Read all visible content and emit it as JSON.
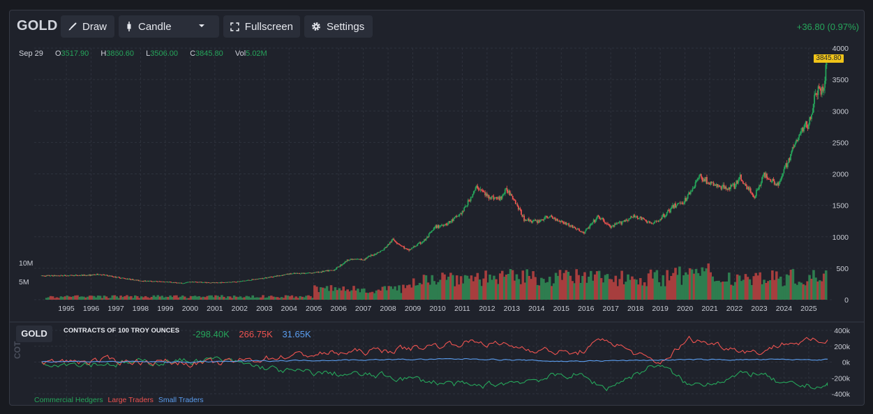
{
  "toolbar": {
    "symbol": "GOLD",
    "draw_label": "Draw",
    "chart_type_label": "Candle",
    "fullscreen_label": "Fullscreen",
    "settings_label": "Settings",
    "change_text": "+36.80 (0.97%)"
  },
  "ohlc": {
    "date": "Sep 29",
    "o_key": "O",
    "o": "3517.90",
    "h_key": "H",
    "h": "3860.60",
    "l_key": "L",
    "l": "3506.00",
    "c_key": "C",
    "c": "3845.80",
    "vol_key": "Vol",
    "vol": "5.02M"
  },
  "last_price_tag": "3845.80",
  "cot": {
    "label": "GOLD",
    "subtitle": "CONTRACTS OF 100 TROY OUNCES",
    "commercial_value": "-298.40K",
    "large_value": "266.75K",
    "small_value": "31.65K",
    "vertical_label": "COT",
    "legend": [
      "Commercial Hedgers",
      "Large Traders",
      "Small Traders"
    ]
  },
  "colors": {
    "up": "#26a65b",
    "down": "#ef5350",
    "small": "#5b9ef0",
    "price_tag": "#f0c419"
  },
  "icons": [
    "brush-icon",
    "candle-icon",
    "chevron-down-icon",
    "fullscreen-icon",
    "gear-icon"
  ],
  "chart_data": [
    {
      "type": "candlestick",
      "title": "GOLD",
      "x_tick_labels": [
        "1995",
        "1996",
        "1997",
        "1998",
        "1999",
        "2000",
        "2001",
        "2002",
        "2003",
        "2004",
        "2005",
        "2006",
        "2007",
        "2008",
        "2009",
        "2010",
        "2011",
        "2012",
        "2013",
        "2014",
        "2015",
        "2016",
        "2017",
        "2018",
        "2019",
        "2020",
        "2021",
        "2022",
        "2023",
        "2024",
        "2025"
      ],
      "y_tick_labels": [
        "4000",
        "3500",
        "3000",
        "2500",
        "2000",
        "1500",
        "1000",
        "500",
        "0"
      ],
      "ylim": [
        0,
        4000
      ],
      "volume_axis_labels": [
        "10M",
        "5M"
      ],
      "price_path": [
        [
          1994.0,
          380
        ],
        [
          1995.0,
          384
        ],
        [
          1996.0,
          390
        ],
        [
          1996.3,
          405
        ],
        [
          1997.0,
          360
        ],
        [
          1998.0,
          300
        ],
        [
          1999.0,
          285
        ],
        [
          1999.7,
          260
        ],
        [
          2000.0,
          285
        ],
        [
          2001.0,
          268
        ],
        [
          2002.0,
          290
        ],
        [
          2003.0,
          345
        ],
        [
          2004.0,
          410
        ],
        [
          2005.0,
          430
        ],
        [
          2005.8,
          470
        ],
        [
          2006.4,
          640
        ],
        [
          2007.0,
          640
        ],
        [
          2007.8,
          790
        ],
        [
          2008.2,
          960
        ],
        [
          2008.8,
          780
        ],
        [
          2009.5,
          950
        ],
        [
          2009.9,
          1150
        ],
        [
          2010.5,
          1230
        ],
        [
          2011.0,
          1390
        ],
        [
          2011.6,
          1800
        ],
        [
          2012.0,
          1650
        ],
        [
          2012.5,
          1600
        ],
        [
          2012.8,
          1750
        ],
        [
          2013.0,
          1670
        ],
        [
          2013.5,
          1280
        ],
        [
          2014.0,
          1240
        ],
        [
          2014.5,
          1320
        ],
        [
          2015.0,
          1250
        ],
        [
          2015.5,
          1150
        ],
        [
          2015.9,
          1060
        ],
        [
          2016.5,
          1320
        ],
        [
          2017.0,
          1150
        ],
        [
          2017.5,
          1250
        ],
        [
          2018.0,
          1330
        ],
        [
          2018.7,
          1200
        ],
        [
          2019.0,
          1290
        ],
        [
          2019.6,
          1500
        ],
        [
          2020.0,
          1580
        ],
        [
          2020.6,
          1970
        ],
        [
          2021.0,
          1850
        ],
        [
          2021.5,
          1780
        ],
        [
          2022.0,
          1800
        ],
        [
          2022.2,
          1950
        ],
        [
          2022.8,
          1640
        ],
        [
          2023.2,
          1990
        ],
        [
          2023.8,
          1830
        ],
        [
          2024.0,
          2050
        ],
        [
          2024.3,
          2350
        ],
        [
          2024.8,
          2750
        ],
        [
          2025.0,
          2800
        ],
        [
          2025.3,
          3300
        ],
        [
          2025.6,
          3350
        ],
        [
          2025.75,
          3845.8
        ]
      ]
    },
    {
      "type": "line",
      "title": "COT",
      "y_tick_labels": [
        "400k",
        "200k",
        "0k",
        "-200k",
        "-400k"
      ],
      "ylim": [
        -400000,
        400000
      ],
      "series": [
        {
          "name": "Commercial Hedgers",
          "x": [
            1994.0,
            1997.0,
            2001.0,
            2004.0,
            2008.0,
            2011.5,
            2015.6,
            2016.8,
            2018.9,
            2020.2,
            2022.9,
            2024.0,
            2025.75
          ],
          "values": [
            0,
            -20000,
            30000,
            -120000,
            -180000,
            -310000,
            -150000,
            -330000,
            -20000,
            -300000,
            -130000,
            -300000,
            -298400
          ]
        },
        {
          "name": "Large Traders",
          "x": [
            1994.0,
            1997.0,
            2001.0,
            2004.0,
            2008.0,
            2011.5,
            2015.6,
            2016.8,
            2018.9,
            2020.2,
            2022.9,
            2024.0,
            2025.75
          ],
          "values": [
            0,
            20000,
            -20000,
            80000,
            150000,
            260000,
            100000,
            290000,
            -30000,
            290000,
            120000,
            240000,
            266750
          ]
        },
        {
          "name": "Small Traders",
          "x": [
            1994.0,
            2000.0,
            2004.0,
            2011.5,
            2015.0,
            2020.0,
            2025.75
          ],
          "values": [
            10000,
            0,
            20000,
            40000,
            10000,
            30000,
            31650
          ]
        }
      ]
    }
  ]
}
